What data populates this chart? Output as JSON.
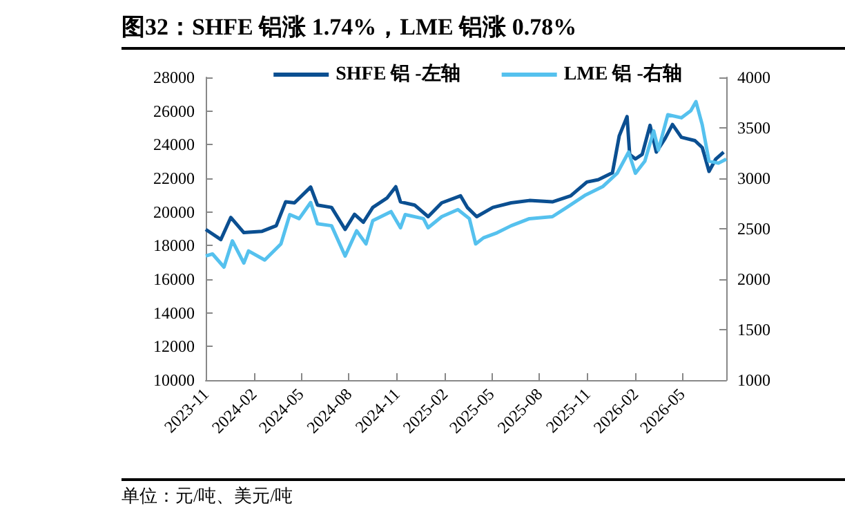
{
  "chart_data": {
    "type": "line",
    "title": "图32：SHFE 铝涨 1.74%，LME 铝涨 0.78%",
    "annotations": [
      "单位：元/吨、美元/吨"
    ],
    "xlim": [
      "2023-11-01",
      "2026-07-25"
    ],
    "xticks": [
      "2023-11",
      "2024-02",
      "2024-05",
      "2024-08",
      "2024-11",
      "2025-02",
      "2025-05",
      "2025-08",
      "2025-11",
      "2026-02",
      "2026-05"
    ],
    "ylim": [
      10000,
      28000
    ],
    "yticks": [
      10000,
      12000,
      14000,
      16000,
      18000,
      20000,
      22000,
      24000,
      26000,
      28000
    ],
    "y2lim": [
      1000,
      4000
    ],
    "y2ticks": [
      1000,
      1500,
      2000,
      2500,
      3000,
      3500,
      4000
    ],
    "legend": "top",
    "grid": false,
    "series": [
      {
        "name": "SHFE 铝 -左轴",
        "color": "#0b4f91",
        "x": [
          "2023-11-01",
          "2023-11-30",
          "2023-12-19",
          "2024-01-13",
          "2024-02-17",
          "2024-03-15",
          "2024-04-02",
          "2024-04-19",
          "2024-05-20",
          "2024-06-02",
          "2024-06-29",
          "2024-07-25",
          "2024-08-12",
          "2024-08-29",
          "2024-09-16",
          "2024-10-13",
          "2024-10-30",
          "2024-11-08",
          "2024-12-05",
          "2024-12-31",
          "2025-01-26",
          "2025-03-03",
          "2025-03-16",
          "2025-04-03",
          "2025-05-04",
          "2025-06-08",
          "2025-07-13",
          "2025-08-26",
          "2025-09-30",
          "2025-10-31",
          "2025-11-22",
          "2025-12-19",
          "2026-01-01",
          "2026-01-16",
          "2026-01-21",
          "2026-02-01",
          "2026-02-14",
          "2026-03-01",
          "2026-03-13",
          "2026-03-30",
          "2026-04-13",
          "2026-04-30",
          "2026-05-26",
          "2026-06-09",
          "2026-06-22",
          "2026-07-05",
          "2026-07-20"
        ],
        "values": [
          18960,
          18360,
          19670,
          18770,
          18850,
          19180,
          20600,
          20540,
          21480,
          20410,
          20270,
          18960,
          19860,
          19390,
          20270,
          20820,
          21500,
          20600,
          20410,
          19720,
          20540,
          20960,
          20270,
          19720,
          20270,
          20540,
          20680,
          20600,
          20960,
          21780,
          21920,
          22330,
          24520,
          25670,
          23420,
          23150,
          23420,
          25150,
          23560,
          24380,
          25200,
          24440,
          24240,
          23830,
          22410,
          23150,
          23560
        ]
      },
      {
        "name": "LME 铝 -右轴",
        "color": "#55c1ee",
        "axis": "y2",
        "x": [
          "2023-11-01",
          "2023-11-14",
          "2023-12-06",
          "2023-12-22",
          "2024-01-13",
          "2024-01-22",
          "2024-02-22",
          "2024-03-24",
          "2024-04-10",
          "2024-04-28",
          "2024-05-20",
          "2024-06-02",
          "2024-06-29",
          "2024-07-25",
          "2024-08-16",
          "2024-09-03",
          "2024-09-16",
          "2024-10-21",
          "2024-11-08",
          "2024-11-17",
          "2024-12-22",
          "2024-12-31",
          "2025-01-26",
          "2025-02-26",
          "2025-03-20",
          "2025-04-01",
          "2025-04-16",
          "2025-05-12",
          "2025-06-08",
          "2025-07-13",
          "2025-08-26",
          "2025-09-22",
          "2025-10-27",
          "2025-12-01",
          "2025-12-28",
          "2026-01-19",
          "2026-02-01",
          "2026-02-19",
          "2026-03-08",
          "2026-03-17",
          "2026-04-04",
          "2026-04-30",
          "2026-05-18",
          "2026-05-28",
          "2026-06-09",
          "2026-06-22",
          "2026-07-10",
          "2026-07-25"
        ],
        "values": [
          2230,
          2250,
          2120,
          2380,
          2160,
          2280,
          2190,
          2350,
          2640,
          2600,
          2760,
          2550,
          2530,
          2230,
          2480,
          2350,
          2580,
          2670,
          2510,
          2640,
          2600,
          2510,
          2620,
          2690,
          2600,
          2350,
          2410,
          2460,
          2530,
          2600,
          2620,
          2710,
          2830,
          2920,
          3050,
          3260,
          3050,
          3170,
          3470,
          3280,
          3630,
          3600,
          3670,
          3760,
          3530,
          3170,
          3150,
          3190
        ]
      }
    ]
  }
}
